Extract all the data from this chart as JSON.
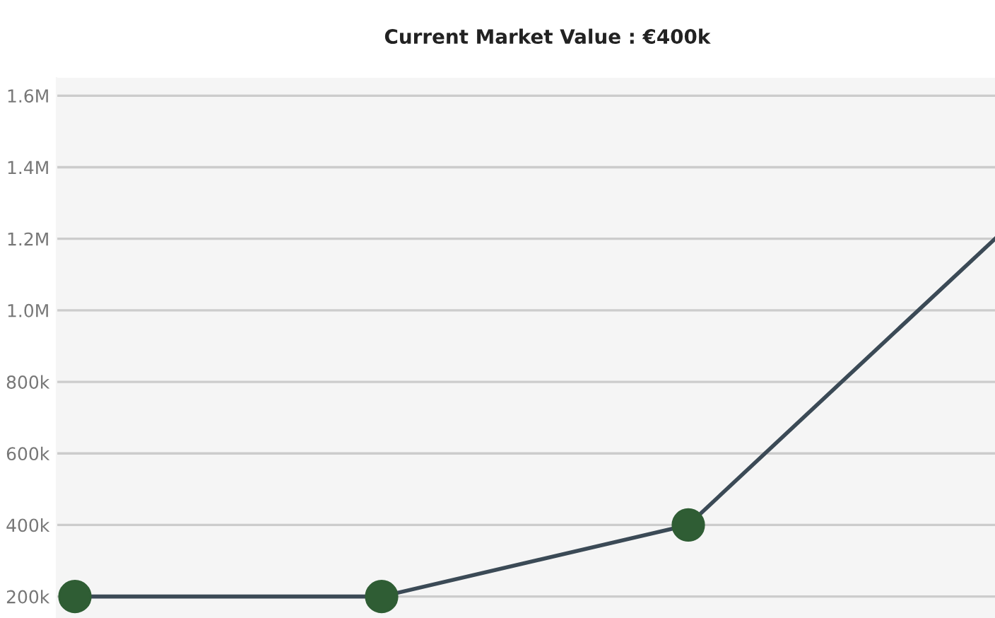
{
  "chart_data": {
    "type": "line",
    "title": "Current Market Value : €400k",
    "categories": [
      null,
      null,
      null,
      null
    ],
    "series": [
      {
        "color": "#3b4a56",
        "values": [
          200000,
          200000,
          400000,
          1200000
        ]
      },
      {
        "type": "scatter",
        "color": "#2f5d34",
        "marker": "circle",
        "values": [
          200000,
          200000,
          400000,
          null
        ]
      }
    ],
    "ylim": [
      140000,
      1650000
    ],
    "yticks": [
      {
        "value": 200000,
        "label": "200k"
      },
      {
        "value": 400000,
        "label": "400k"
      },
      {
        "value": 600000,
        "label": "600k"
      },
      {
        "value": 800000,
        "label": "800k"
      },
      {
        "value": 1000000,
        "label": "1.0M"
      },
      {
        "value": 1200000,
        "label": "1.2M"
      },
      {
        "value": 1400000,
        "label": "1.4M"
      },
      {
        "value": 1600000,
        "label": "1.6M"
      }
    ],
    "grid": "y",
    "tick_labels": "y",
    "legend": false
  }
}
